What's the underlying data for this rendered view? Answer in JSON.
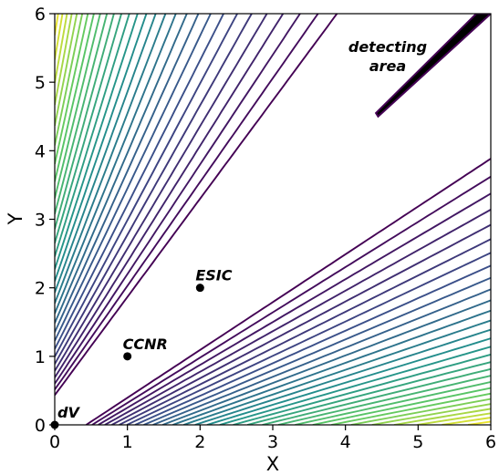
{
  "chart_data": {
    "type": "contour",
    "title": "",
    "xlabel": "X",
    "ylabel": "Y",
    "xlim": [
      0,
      6
    ],
    "ylim": [
      0,
      6
    ],
    "xticks": [
      "0",
      "1",
      "2",
      "3",
      "4",
      "5",
      "6"
    ],
    "yticks": [
      "0",
      "1",
      "2",
      "3",
      "4",
      "5",
      "6"
    ],
    "grid": false,
    "colormap": [
      "#440154",
      "#3b528b",
      "#21918c",
      "#5ec962",
      "#fde725"
    ],
    "points": [
      {
        "label": "dV",
        "x": 0,
        "y": 0
      },
      {
        "label": "CCNR",
        "x": 1,
        "y": 1
      },
      {
        "label": "ESIC",
        "x": 2,
        "y": 2
      }
    ],
    "region": {
      "label_lines": [
        "detecting",
        "area"
      ],
      "color": "#000000",
      "outline": [
        [
          4.45,
          4.5
        ],
        [
          6.0,
          6.0
        ],
        [
          5.8,
          6.0
        ],
        [
          4.42,
          4.55
        ]
      ]
    }
  }
}
